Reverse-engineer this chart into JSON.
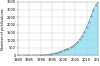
{
  "title": "",
  "ylabel": "Number of publications",
  "xlabel": "",
  "years": [
    1980,
    1981,
    1982,
    1983,
    1984,
    1985,
    1986,
    1987,
    1988,
    1989,
    1990,
    1991,
    1992,
    1993,
    1994,
    1995,
    1996,
    1997,
    1998,
    1999,
    2000,
    2001,
    2002,
    2003,
    2004,
    2005,
    2006,
    2007,
    2008,
    2009,
    2010,
    2011,
    2012,
    2013,
    2014,
    2015
  ],
  "values": [
    2,
    2,
    2,
    3,
    3,
    4,
    5,
    7,
    10,
    14,
    20,
    28,
    38,
    52,
    70,
    95,
    128,
    168,
    215,
    270,
    330,
    390,
    450,
    520,
    610,
    720,
    870,
    1050,
    1280,
    1550,
    1850,
    2200,
    2600,
    3000,
    3300,
    3500
  ],
  "line_color": "#7dd8ee",
  "dot_color": "#555555",
  "background_color": "#ffffff",
  "grid_color": "#cccccc",
  "ylim": [
    0,
    3500
  ],
  "xlim": [
    1980,
    2015
  ],
  "yticks": [
    0,
    500,
    1000,
    1500,
    2000,
    2500,
    3000,
    3500
  ],
  "xticks": [
    1980,
    1985,
    1990,
    1995,
    2000,
    2005,
    2010,
    2015
  ],
  "tick_fontsize": 2.5,
  "ylabel_fontsize": 2.5
}
